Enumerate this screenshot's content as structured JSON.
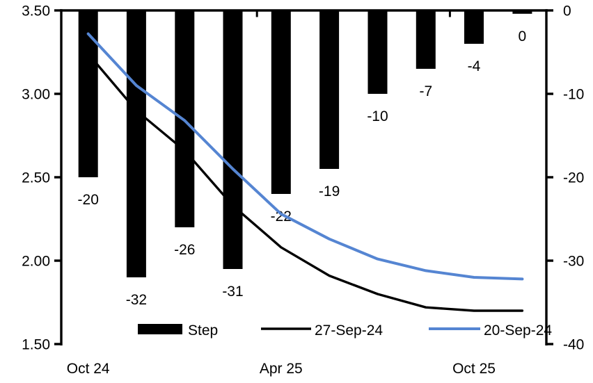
{
  "chart_data": {
    "type": "combo",
    "title": "",
    "n_categories": 10,
    "x_tick_labels": [
      {
        "label": "Oct 24",
        "category_index": 0
      },
      {
        "label": "Apr 25",
        "category_index": 4
      },
      {
        "label": "Oct 25",
        "category_index": 8
      }
    ],
    "x_boundary_tick_categories": [
      4,
      8
    ],
    "left_axis": {
      "side": "left",
      "min": 1.5,
      "max": 3.5,
      "tick_labels": [
        "3.50",
        "3.00",
        "2.50",
        "2.00",
        "1.50"
      ],
      "tick_values": [
        3.5,
        3.0,
        2.5,
        2.0,
        1.5
      ]
    },
    "right_axis": {
      "side": "right",
      "min": -40,
      "max": 0,
      "tick_labels": [
        "0",
        "-10",
        "-20",
        "-30",
        "-40"
      ],
      "tick_values": [
        0,
        -10,
        -20,
        -30,
        -40
      ]
    },
    "series": [
      {
        "name": "Step",
        "type": "bar",
        "axis": "right",
        "color": "#000000",
        "values": [
          -20,
          -32,
          -26,
          -31,
          -22,
          -19,
          -10,
          -7,
          -4,
          -0.4
        ],
        "data_labels": [
          "-20",
          "-32",
          "-26",
          "-31",
          "-22",
          "-19",
          "-10",
          "-7",
          "-4",
          "0"
        ]
      },
      {
        "name": "27-Sep-24",
        "type": "line",
        "axis": "left",
        "color": "#000000",
        "stroke_width": 3.4,
        "values": [
          3.24,
          2.9,
          2.66,
          2.33,
          2.08,
          1.91,
          1.8,
          1.72,
          1.7,
          1.7
        ]
      },
      {
        "name": "20-Sep-24",
        "type": "line",
        "axis": "left",
        "color": "#5585D2",
        "stroke_width": 4,
        "values": [
          3.36,
          3.05,
          2.84,
          2.55,
          2.28,
          2.13,
          2.01,
          1.94,
          1.9,
          1.89
        ]
      }
    ],
    "legend": {
      "position": "bottom",
      "entries": [
        {
          "label": "Step",
          "swatch": "bar",
          "color": "#000000"
        },
        {
          "label": "27-Sep-24",
          "swatch": "line",
          "color": "#000000"
        },
        {
          "label": "20-Sep-24",
          "swatch": "line",
          "color": "#5585D2"
        }
      ]
    },
    "grid": false,
    "background_color": "#ffffff",
    "text_color": "#000000"
  }
}
